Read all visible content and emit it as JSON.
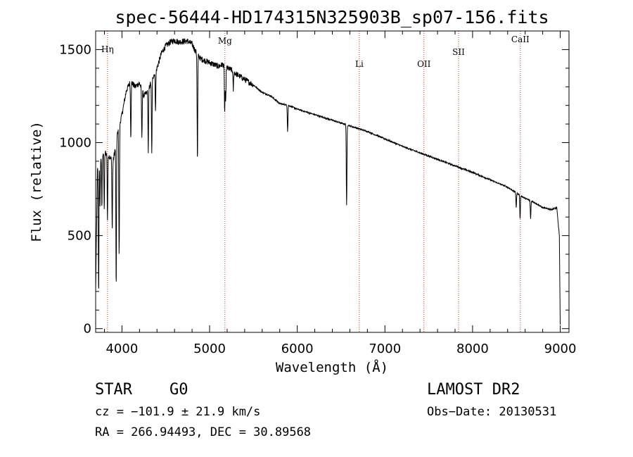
{
  "chart_data": {
    "type": "line",
    "title": "spec-56444-HD174315N325903B_sp07-156.fits",
    "xlabel": "Wavelength (Å)",
    "ylabel": "Flux (relative)",
    "xlim": [
      3700,
      9100
    ],
    "ylim": [
      -20,
      1600
    ],
    "xticks": [
      4000,
      5000,
      6000,
      7000,
      8000,
      9000
    ],
    "yticks": [
      0,
      500,
      1000,
      1500
    ],
    "xtick_labels": [
      "4000",
      "5000",
      "6000",
      "7000",
      "8000",
      "9000"
    ],
    "ytick_labels": [
      "0",
      "500",
      "1000",
      "1500"
    ],
    "spectral_lines": [
      {
        "name": "Hη",
        "wavelength": 3835
      },
      {
        "name": "Mg",
        "wavelength": 5175
      },
      {
        "name": "Li",
        "wavelength": 6708
      },
      {
        "name": "OII",
        "wavelength": 7445
      },
      {
        "name": "SII",
        "wavelength": 7840
      },
      {
        "name": "CaII",
        "wavelength": 8545
      }
    ],
    "continuum": {
      "x": [
        3700,
        3720,
        3750,
        3800,
        3850,
        3900,
        3950,
        4000,
        4050,
        4100,
        4150,
        4200,
        4250,
        4300,
        4350,
        4400,
        4450,
        4500,
        4550,
        4600,
        4650,
        4700,
        4750,
        4800,
        4850,
        4900,
        4950,
        5000,
        5050,
        5100,
        5150,
        5200,
        5250,
        5300,
        5400,
        5500,
        5600,
        5700,
        5800,
        5900,
        6000,
        6200,
        6400,
        6600,
        6800,
        7000,
        7200,
        7400,
        7600,
        7800,
        8000,
        8200,
        8400,
        8500,
        8600,
        8700,
        8800,
        8900,
        8960,
        8990,
        9000
      ],
      "y": [
        200,
        850,
        920,
        950,
        930,
        900,
        1050,
        1150,
        1280,
        1330,
        1300,
        1320,
        1250,
        1280,
        1350,
        1400,
        1480,
        1520,
        1540,
        1550,
        1540,
        1545,
        1545,
        1530,
        1480,
        1450,
        1440,
        1430,
        1420,
        1410,
        1420,
        1400,
        1390,
        1370,
        1340,
        1310,
        1270,
        1250,
        1210,
        1200,
        1180,
        1150,
        1120,
        1090,
        1060,
        1020,
        980,
        945,
        910,
        875,
        840,
        800,
        760,
        730,
        700,
        680,
        650,
        640,
        650,
        500,
        20
      ]
    },
    "absorption_lines": [
      {
        "wavelength": 3734,
        "depth": 700
      },
      {
        "wavelength": 3750,
        "depth": 250
      },
      {
        "wavelength": 3771,
        "depth": 280
      },
      {
        "wavelength": 3798,
        "depth": 300
      },
      {
        "wavelength": 3835,
        "depth": 350
      },
      {
        "wavelength": 3889,
        "depth": 380
      },
      {
        "wavelength": 3934,
        "depth": 800
      },
      {
        "wavelength": 3968,
        "depth": 700
      },
      {
        "wavelength": 4101,
        "depth": 300
      },
      {
        "wavelength": 4227,
        "depth": 250
      },
      {
        "wavelength": 4300,
        "depth": 330
      },
      {
        "wavelength": 4340,
        "depth": 400
      },
      {
        "wavelength": 4383,
        "depth": 200
      },
      {
        "wavelength": 4861,
        "depth": 580
      },
      {
        "wavelength": 5172,
        "depth": 250
      },
      {
        "wavelength": 5183,
        "depth": 200
      },
      {
        "wavelength": 5270,
        "depth": 100
      },
      {
        "wavelength": 5890,
        "depth": 140
      },
      {
        "wavelength": 6563,
        "depth": 440
      },
      {
        "wavelength": 8498,
        "depth": 80
      },
      {
        "wavelength": 8542,
        "depth": 130
      },
      {
        "wavelength": 8662,
        "depth": 100
      }
    ]
  },
  "info": {
    "object_class": "STAR",
    "subclass": "G0",
    "survey": "LAMOST DR2",
    "redshift": "cz = −101.9 ± 21.9 km/s",
    "obs_date": "Obs−Date: 20130531",
    "coords": "RA = 266.94493, DEC =  30.89568"
  }
}
